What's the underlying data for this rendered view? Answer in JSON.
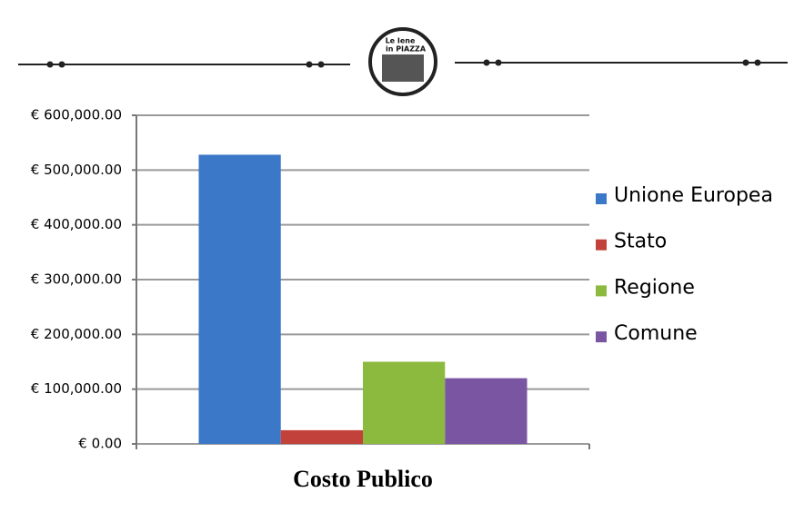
{
  "header": {
    "logo_lines": [
      "Le Iene",
      "in PIAZZA"
    ]
  },
  "chart_data": {
    "type": "bar",
    "categories": [
      "Costo Publico"
    ],
    "series": [
      {
        "name": "Unione Europea",
        "color": "#3b78c8",
        "values": [
          528000
        ]
      },
      {
        "name": "Stato",
        "color": "#c2413a",
        "values": [
          25000
        ]
      },
      {
        "name": "Regione",
        "color": "#8cba3e",
        "values": [
          150000
        ]
      },
      {
        "name": "Comune",
        "color": "#7a55a2",
        "values": [
          120000
        ]
      }
    ],
    "ylim": [
      0,
      600000
    ],
    "yticks": [
      {
        "value": 0,
        "label": "€ 0.00"
      },
      {
        "value": 100000,
        "label": "€ 100,000.00"
      },
      {
        "value": 200000,
        "label": "€ 200,000.00"
      },
      {
        "value": 300000,
        "label": "€ 300,000.00"
      },
      {
        "value": 400000,
        "label": "€ 400,000.00"
      },
      {
        "value": 500000,
        "label": "€ 500,000.00"
      },
      {
        "value": 600000,
        "label": "€ 600,000.00"
      }
    ],
    "grid": true,
    "legend": "right"
  }
}
